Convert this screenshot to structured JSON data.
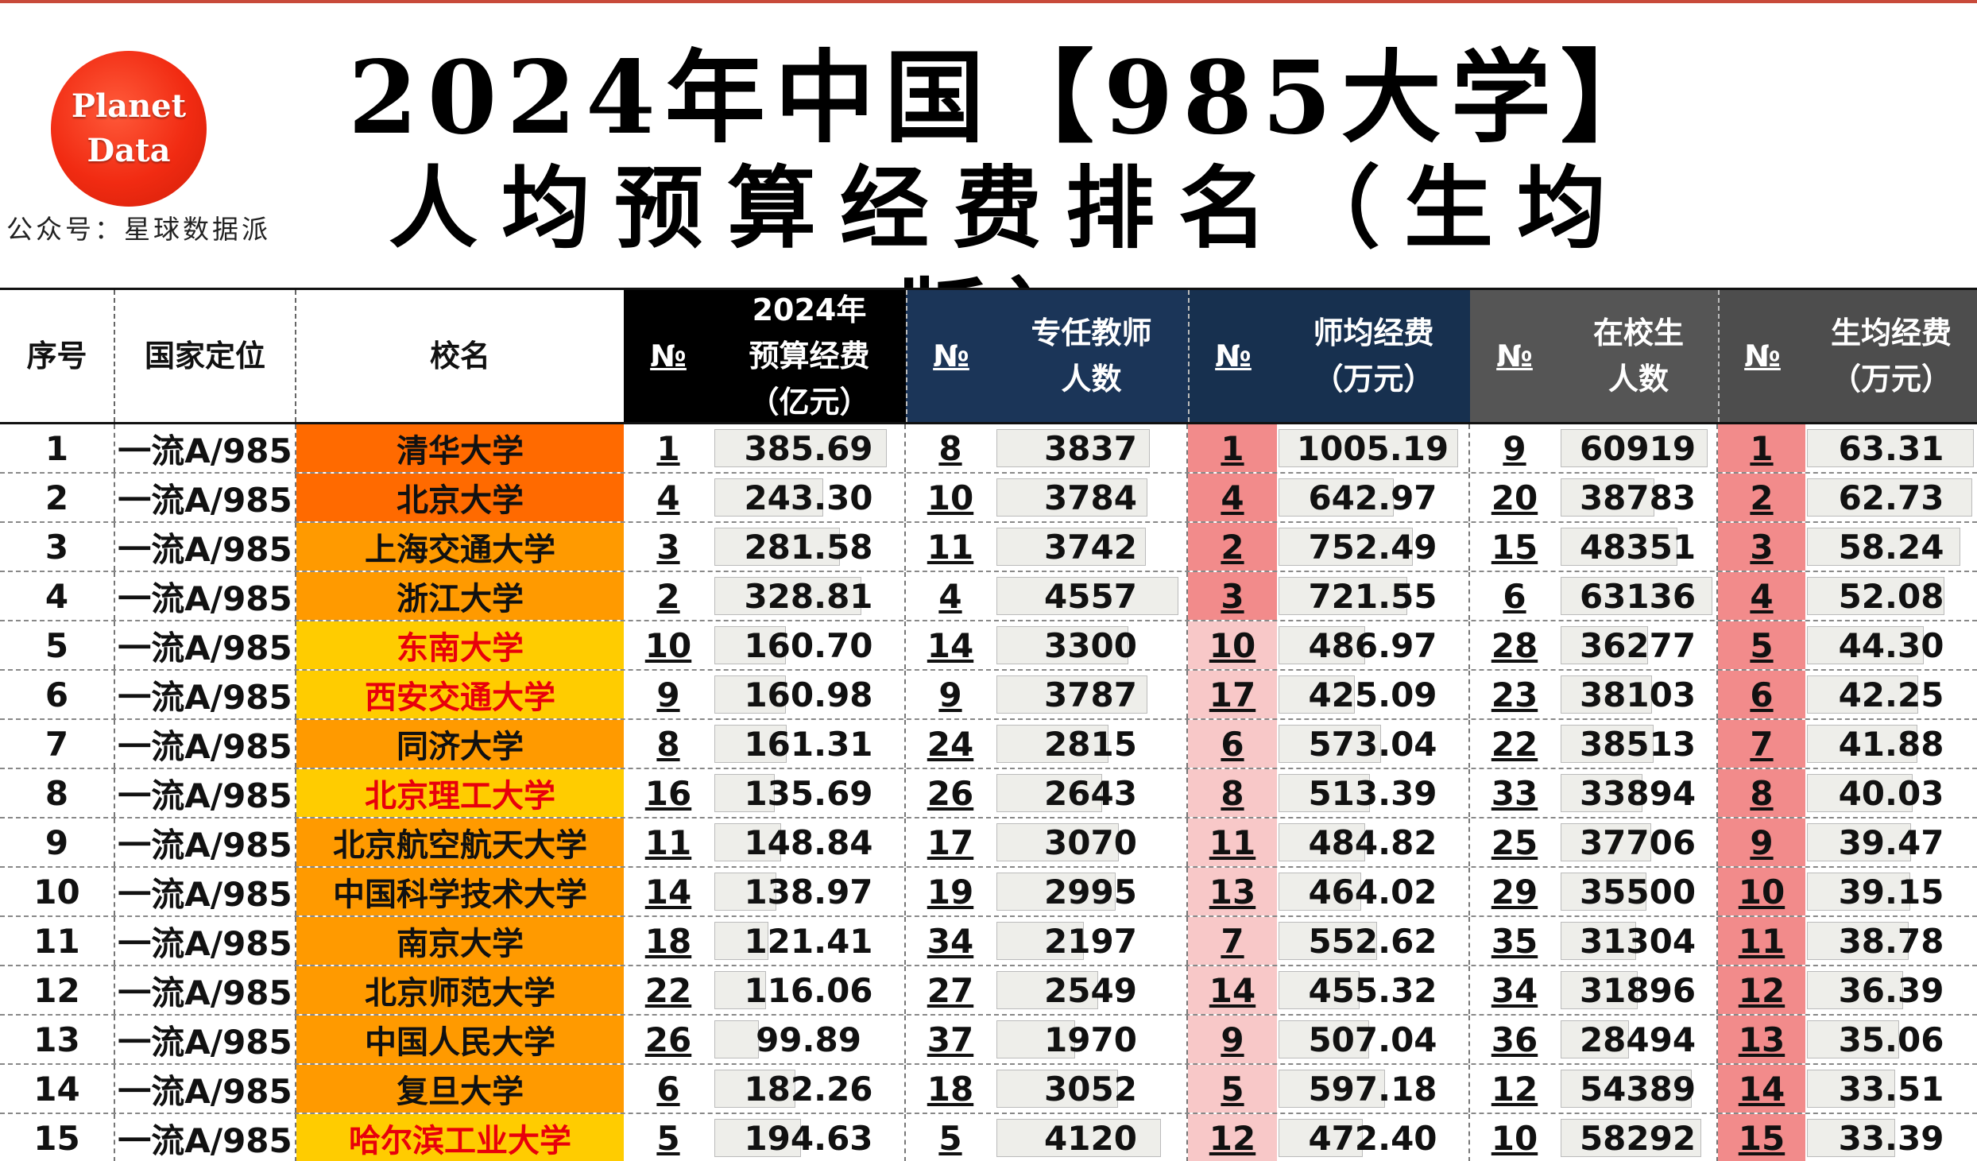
{
  "logo": {
    "line1": "Planet",
    "line2": "Data"
  },
  "account": "公众号：星球数据派",
  "title_line1": "2024年中国【985大学】",
  "title_line2": "人均预算经费排名（生均版）",
  "headers": {
    "idx": "序号",
    "pos": "国家定位",
    "name": "校名",
    "rank": "№",
    "budget": "2024年\n预算经费\n（亿元）",
    "teachers": "专任教师\n人数",
    "per_teacher": "师均经费\n（万元）",
    "students": "在校生\n人数",
    "per_student": "生均经费\n（万元）"
  },
  "colors": {
    "orange_dark": "#ff6a00",
    "orange": "#ff9a00",
    "yellow": "#ffcc00",
    "red_text": "#e8000b",
    "pink_strong": "#f28b8b",
    "pink_light": "#f8c8c8"
  },
  "rows": [
    {
      "idx": "1",
      "pos": "一流A/985",
      "name": "清华大学",
      "shade": "orange_dark",
      "red": false,
      "b_rank": "1",
      "budget": "385.69",
      "t_rank": "8",
      "teachers": "3837",
      "pt_rank": "1",
      "per_teacher": "1005.19",
      "s_rank": "9",
      "students": "60919",
      "ps_rank": "1",
      "per_student": "63.31",
      "budget_v": 385.69,
      "teachers_v": 3837,
      "pt_v": 1005.19,
      "students_v": 60919,
      "ps_v": 63.31
    },
    {
      "idx": "2",
      "pos": "一流A/985",
      "name": "北京大学",
      "shade": "orange_dark",
      "red": false,
      "b_rank": "4",
      "budget": "243.30",
      "t_rank": "10",
      "teachers": "3784",
      "pt_rank": "4",
      "per_teacher": "642.97",
      "s_rank": "20",
      "students": "38783",
      "ps_rank": "2",
      "per_student": "62.73",
      "budget_v": 243.3,
      "teachers_v": 3784,
      "pt_v": 642.97,
      "students_v": 38783,
      "ps_v": 62.73
    },
    {
      "idx": "3",
      "pos": "一流A/985",
      "name": "上海交通大学",
      "shade": "orange",
      "red": false,
      "b_rank": "3",
      "budget": "281.58",
      "t_rank": "11",
      "teachers": "3742",
      "pt_rank": "2",
      "per_teacher": "752.49",
      "s_rank": "15",
      "students": "48351",
      "ps_rank": "3",
      "per_student": "58.24",
      "budget_v": 281.58,
      "teachers_v": 3742,
      "pt_v": 752.49,
      "students_v": 48351,
      "ps_v": 58.24
    },
    {
      "idx": "4",
      "pos": "一流A/985",
      "name": "浙江大学",
      "shade": "orange",
      "red": false,
      "b_rank": "2",
      "budget": "328.81",
      "t_rank": "4",
      "teachers": "4557",
      "pt_rank": "3",
      "per_teacher": "721.55",
      "s_rank": "6",
      "students": "63136",
      "ps_rank": "4",
      "per_student": "52.08",
      "budget_v": 328.81,
      "teachers_v": 4557,
      "pt_v": 721.55,
      "students_v": 63136,
      "ps_v": 52.08
    },
    {
      "idx": "5",
      "pos": "一流A/985",
      "name": "东南大学",
      "shade": "yellow",
      "red": true,
      "b_rank": "10",
      "budget": "160.70",
      "t_rank": "14",
      "teachers": "3300",
      "pt_rank": "10",
      "per_teacher": "486.97",
      "s_rank": "28",
      "students": "36277",
      "ps_rank": "5",
      "per_student": "44.30",
      "budget_v": 160.7,
      "teachers_v": 3300,
      "pt_v": 486.97,
      "students_v": 36277,
      "ps_v": 44.3
    },
    {
      "idx": "6",
      "pos": "一流A/985",
      "name": "西安交通大学",
      "shade": "yellow",
      "red": true,
      "b_rank": "9",
      "budget": "160.98",
      "t_rank": "9",
      "teachers": "3787",
      "pt_rank": "17",
      "per_teacher": "425.09",
      "s_rank": "23",
      "students": "38103",
      "ps_rank": "6",
      "per_student": "42.25",
      "budget_v": 160.98,
      "teachers_v": 3787,
      "pt_v": 425.09,
      "students_v": 38103,
      "ps_v": 42.25
    },
    {
      "idx": "7",
      "pos": "一流A/985",
      "name": "同济大学",
      "shade": "orange",
      "red": false,
      "b_rank": "8",
      "budget": "161.31",
      "t_rank": "24",
      "teachers": "2815",
      "pt_rank": "6",
      "per_teacher": "573.04",
      "s_rank": "22",
      "students": "38513",
      "ps_rank": "7",
      "per_student": "41.88",
      "budget_v": 161.31,
      "teachers_v": 2815,
      "pt_v": 573.04,
      "students_v": 38513,
      "ps_v": 41.88
    },
    {
      "idx": "8",
      "pos": "一流A/985",
      "name": "北京理工大学",
      "shade": "yellow",
      "red": true,
      "b_rank": "16",
      "budget": "135.69",
      "t_rank": "26",
      "teachers": "2643",
      "pt_rank": "8",
      "per_teacher": "513.39",
      "s_rank": "33",
      "students": "33894",
      "ps_rank": "8",
      "per_student": "40.03",
      "budget_v": 135.69,
      "teachers_v": 2643,
      "pt_v": 513.39,
      "students_v": 33894,
      "ps_v": 40.03
    },
    {
      "idx": "9",
      "pos": "一流A/985",
      "name": "北京航空航天大学",
      "shade": "orange",
      "red": false,
      "b_rank": "11",
      "budget": "148.84",
      "t_rank": "17",
      "teachers": "3070",
      "pt_rank": "11",
      "per_teacher": "484.82",
      "s_rank": "25",
      "students": "37706",
      "ps_rank": "9",
      "per_student": "39.47",
      "budget_v": 148.84,
      "teachers_v": 3070,
      "pt_v": 484.82,
      "students_v": 37706,
      "ps_v": 39.47
    },
    {
      "idx": "10",
      "pos": "一流A/985",
      "name": "中国科学技术大学",
      "shade": "orange",
      "red": false,
      "b_rank": "14",
      "budget": "138.97",
      "t_rank": "19",
      "teachers": "2995",
      "pt_rank": "13",
      "per_teacher": "464.02",
      "s_rank": "29",
      "students": "35500",
      "ps_rank": "10",
      "per_student": "39.15",
      "budget_v": 138.97,
      "teachers_v": 2995,
      "pt_v": 464.02,
      "students_v": 35500,
      "ps_v": 39.15
    },
    {
      "idx": "11",
      "pos": "一流A/985",
      "name": "南京大学",
      "shade": "orange",
      "red": false,
      "b_rank": "18",
      "budget": "121.41",
      "t_rank": "34",
      "teachers": "2197",
      "pt_rank": "7",
      "per_teacher": "552.62",
      "s_rank": "35",
      "students": "31304",
      "ps_rank": "11",
      "per_student": "38.78",
      "budget_v": 121.41,
      "teachers_v": 2197,
      "pt_v": 552.62,
      "students_v": 31304,
      "ps_v": 38.78
    },
    {
      "idx": "12",
      "pos": "一流A/985",
      "name": "北京师范大学",
      "shade": "orange",
      "red": false,
      "b_rank": "22",
      "budget": "116.06",
      "t_rank": "27",
      "teachers": "2549",
      "pt_rank": "14",
      "per_teacher": "455.32",
      "s_rank": "34",
      "students": "31896",
      "ps_rank": "12",
      "per_student": "36.39",
      "budget_v": 116.06,
      "teachers_v": 2549,
      "pt_v": 455.32,
      "students_v": 31896,
      "ps_v": 36.39
    },
    {
      "idx": "13",
      "pos": "一流A/985",
      "name": "中国人民大学",
      "shade": "orange",
      "red": false,
      "b_rank": "26",
      "budget": "99.89",
      "t_rank": "37",
      "teachers": "1970",
      "pt_rank": "9",
      "per_teacher": "507.04",
      "s_rank": "36",
      "students": "28494",
      "ps_rank": "13",
      "per_student": "35.06",
      "budget_v": 99.89,
      "teachers_v": 1970,
      "pt_v": 507.04,
      "students_v": 28494,
      "ps_v": 35.06
    },
    {
      "idx": "14",
      "pos": "一流A/985",
      "name": "复旦大学",
      "shade": "orange",
      "red": false,
      "b_rank": "6",
      "budget": "182.26",
      "t_rank": "18",
      "teachers": "3052",
      "pt_rank": "5",
      "per_teacher": "597.18",
      "s_rank": "12",
      "students": "54389",
      "ps_rank": "14",
      "per_student": "33.51",
      "budget_v": 182.26,
      "teachers_v": 3052,
      "pt_v": 597.18,
      "students_v": 54389,
      "ps_v": 33.51
    },
    {
      "idx": "15",
      "pos": "一流A/985",
      "name": "哈尔滨工业大学",
      "shade": "yellow",
      "red": true,
      "b_rank": "5",
      "budget": "194.63",
      "t_rank": "5",
      "teachers": "4120",
      "pt_rank": "12",
      "per_teacher": "472.40",
      "s_rank": "10",
      "students": "58292",
      "ps_rank": "15",
      "per_student": "33.39",
      "budget_v": 194.63,
      "teachers_v": 4120,
      "pt_v": 472.4,
      "students_v": 58292,
      "ps_v": 33.39
    }
  ]
}
